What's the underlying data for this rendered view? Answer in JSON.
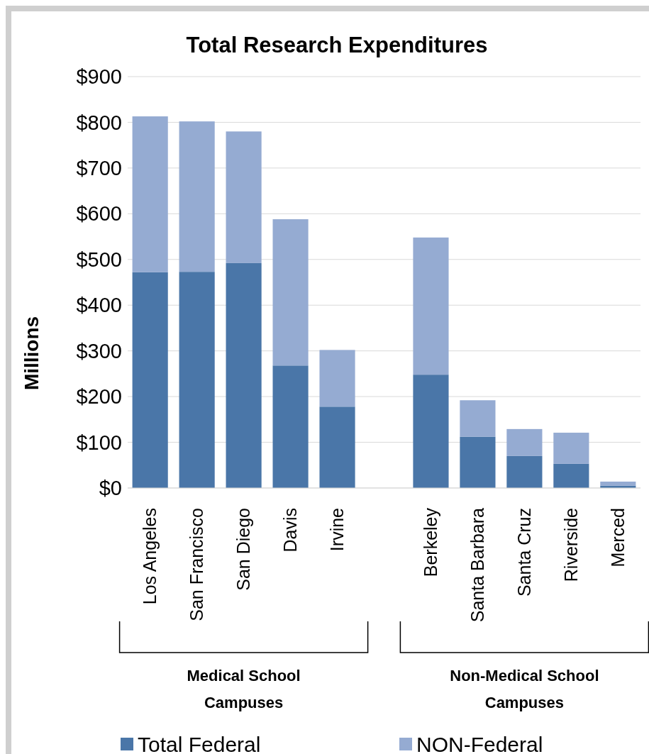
{
  "chart_data": {
    "type": "bar",
    "title": "Total Research Expenditures",
    "ylabel": "Millions",
    "categories": [
      "Los Angeles",
      "San Francisco",
      "San Diego",
      "Davis",
      "Irvine",
      null,
      "Berkeley",
      "Santa Barbara",
      "Santa Cruz",
      "Riverside",
      "Merced"
    ],
    "series": [
      {
        "name": "Total Federal",
        "color": "#4a76a8",
        "values": [
          472,
          473,
          492,
          268,
          178,
          null,
          248,
          112,
          70,
          53,
          5
        ]
      },
      {
        "name": "NON-Federal",
        "color": "#95abd2",
        "values": [
          341,
          329,
          288,
          320,
          124,
          null,
          300,
          80,
          59,
          68,
          9
        ]
      }
    ],
    "stacked": true,
    "ylim": [
      0,
      900
    ],
    "yticks": [
      {
        "value": 0,
        "label": "$0"
      },
      {
        "value": 100,
        "label": "$100"
      },
      {
        "value": 200,
        "label": "$200"
      },
      {
        "value": 300,
        "label": "$300"
      },
      {
        "value": 400,
        "label": "$400"
      },
      {
        "value": 500,
        "label": "$500"
      },
      {
        "value": 600,
        "label": "$600"
      },
      {
        "value": 700,
        "label": "$700"
      },
      {
        "value": 800,
        "label": "$800"
      },
      {
        "value": 900,
        "label": "$900"
      }
    ],
    "grid": "y",
    "legend": "bottom",
    "annotations": [
      "Medical School Campuses",
      "Non-Medical School Campuses"
    ]
  }
}
